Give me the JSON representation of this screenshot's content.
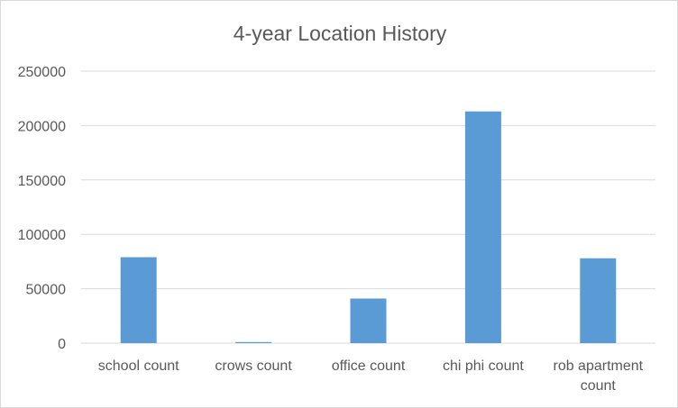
{
  "chart_data": {
    "type": "bar",
    "title": "4-year Location History",
    "categories": [
      "school count",
      "crows count",
      "office count",
      "chi phi count",
      "rob apartment count"
    ],
    "category_lines": [
      [
        "school count"
      ],
      [
        "crows count"
      ],
      [
        "office count"
      ],
      [
        "chi phi count"
      ],
      [
        "rob apartment",
        "count"
      ]
    ],
    "values": [
      79000,
      1000,
      41000,
      213000,
      78000
    ],
    "yticks": [
      "0",
      "50000",
      "100000",
      "150000",
      "200000",
      "250000"
    ],
    "ylim": [
      0,
      250000
    ],
    "grid": true,
    "legend": "none",
    "bar_color": "#5b9bd5"
  }
}
